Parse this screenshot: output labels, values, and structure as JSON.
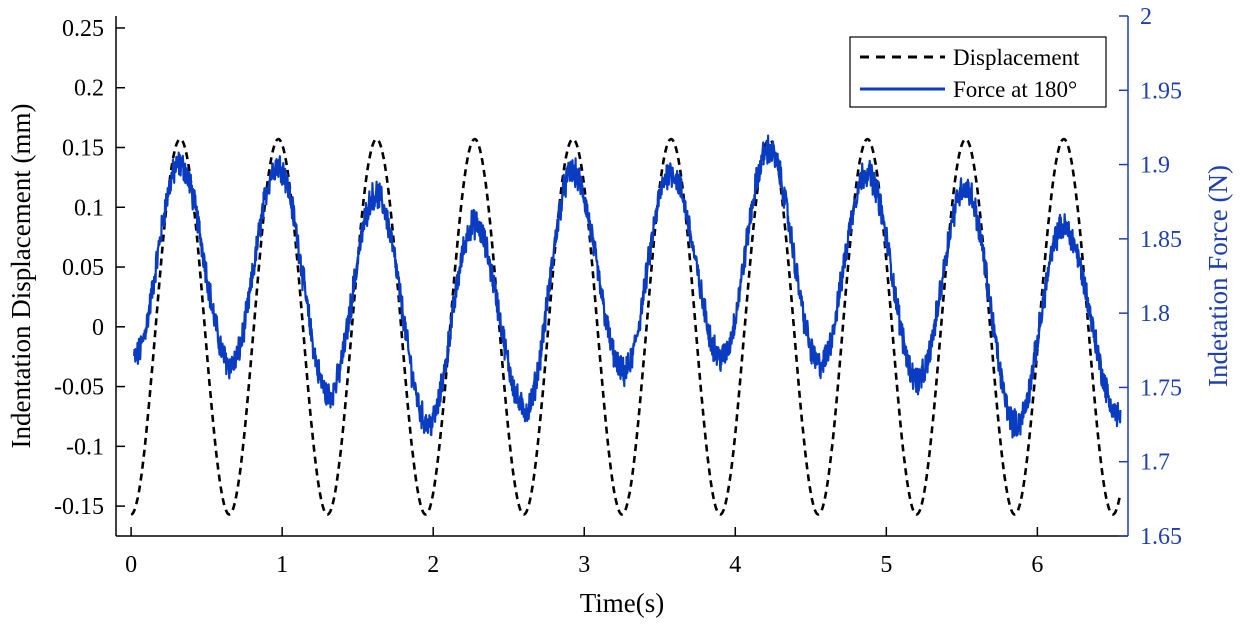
{
  "chart_data": {
    "type": "line",
    "xlabel": "Time(s)",
    "ylabel_left": "Indentation Displacement (mm)",
    "ylabel_right": "Indetation Force (N)",
    "xlim": [
      -0.1,
      6.6
    ],
    "ylim_left": [
      -0.175,
      0.26
    ],
    "ylim_right": [
      1.65,
      2.0
    ],
    "x_ticks": [
      "0",
      "1",
      "2",
      "3",
      "4",
      "5",
      "6"
    ],
    "y_left_ticks": [
      "0.25",
      "0.2",
      "0.15",
      "0.1",
      "0.05",
      "0",
      "-0.05",
      "-0.1",
      "-0.15"
    ],
    "y_right_ticks": [
      "2",
      "1.95",
      "1.9",
      "1.85",
      "1.8",
      "1.75",
      "1.7",
      "1.65"
    ],
    "legend_position": "top-right",
    "colors": {
      "displacement": "#000000",
      "force": "#0a3cc2",
      "right_axis": "#1f3fb0"
    },
    "series": [
      {
        "name": "Displacement",
        "axis": "left",
        "style": "dashed",
        "model": "cosine",
        "amplitude": 0.157,
        "offset": 0,
        "period": 0.65,
        "phase_min_at": 0,
        "x_range": [
          0,
          6.55
        ]
      },
      {
        "name": "Force at 180°",
        "axis": "right",
        "style": "solid",
        "x_range": [
          0.02,
          6.55
        ],
        "peaks": [
          {
            "x": 0.32,
            "y": 1.9
          },
          {
            "x": 0.97,
            "y": 1.9
          },
          {
            "x": 1.62,
            "y": 1.88
          },
          {
            "x": 2.27,
            "y": 1.86
          },
          {
            "x": 2.92,
            "y": 1.895
          },
          {
            "x": 3.57,
            "y": 1.895
          },
          {
            "x": 4.22,
            "y": 1.91
          },
          {
            "x": 4.87,
            "y": 1.895
          },
          {
            "x": 5.52,
            "y": 1.885
          },
          {
            "x": 6.17,
            "y": 1.858
          }
        ],
        "troughs": [
          {
            "x": 0.02,
            "y": 1.77
          },
          {
            "x": 0.66,
            "y": 1.765
          },
          {
            "x": 1.31,
            "y": 1.745
          },
          {
            "x": 1.97,
            "y": 1.725
          },
          {
            "x": 2.61,
            "y": 1.735
          },
          {
            "x": 3.26,
            "y": 1.76
          },
          {
            "x": 3.91,
            "y": 1.77
          },
          {
            "x": 4.56,
            "y": 1.765
          },
          {
            "x": 5.21,
            "y": 1.755
          },
          {
            "x": 5.86,
            "y": 1.725
          },
          {
            "x": 6.55,
            "y": 1.73
          }
        ],
        "noise_amplitude": 0.008
      }
    ]
  }
}
